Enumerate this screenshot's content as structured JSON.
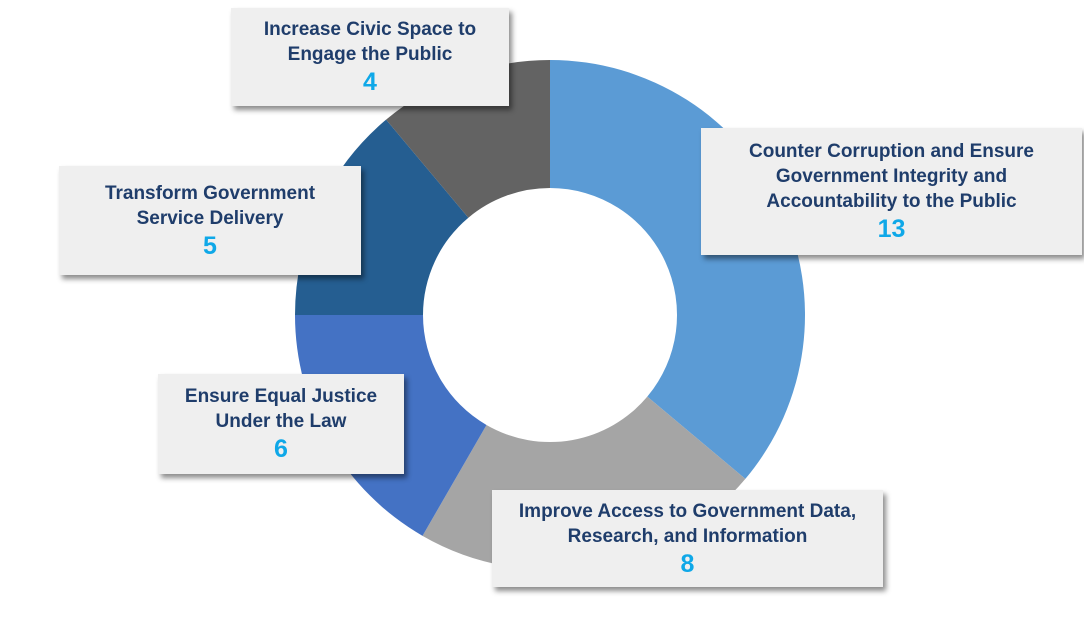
{
  "chart_data": {
    "type": "donut",
    "categories": [
      "Counter Corruption and Ensure Government Integrity and Accountability to the Public",
      "Improve Access to Government Data, Research, and Information",
      "Ensure Equal Justice Under the Law",
      "Transform Government Service Delivery",
      "Increase Civic Space to Engage the Public"
    ],
    "values": [
      13,
      8,
      6,
      5,
      4
    ],
    "colors": [
      "#5b9bd5",
      "#a5a5a5",
      "#4472c4",
      "#255e91",
      "#636363"
    ]
  }
}
